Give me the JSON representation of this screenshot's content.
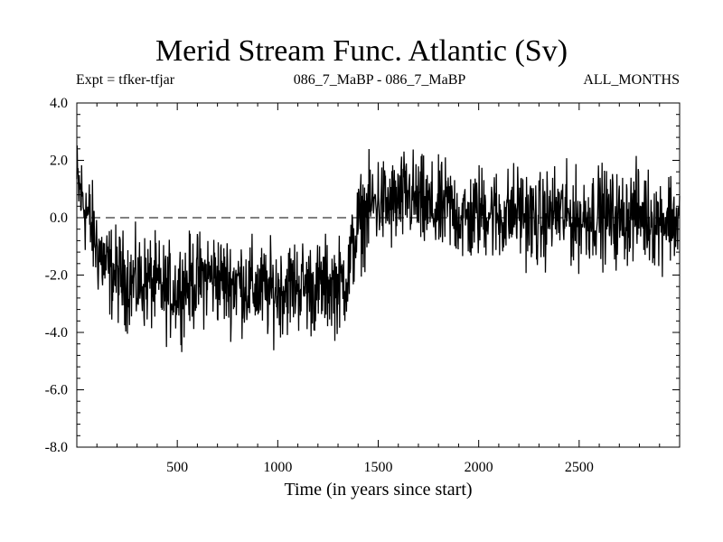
{
  "chart_data": {
    "type": "line",
    "title": "Merid Stream Func. Atlantic (Sv)",
    "subtitle_left": "Expt = tfker-tfjar",
    "subtitle_center": "086_7_MaBP - 086_7_MaBP",
    "subtitle_right": "ALL_MONTHS",
    "xlabel": "Time (in years since start)",
    "ylabel": "",
    "xlim": [
      0,
      3000
    ],
    "ylim": [
      -8.0,
      4.0
    ],
    "x_ticks": [
      500,
      1000,
      1500,
      2000,
      2500
    ],
    "x_tick_labels": [
      "500",
      "1000",
      "1500",
      "2000",
      "2500"
    ],
    "y_ticks": [
      4.0,
      2.0,
      0.0,
      -2.0,
      -4.0,
      -6.0,
      -8.0
    ],
    "y_tick_labels": [
      "4.0",
      "2.0",
      "0.0",
      "-2.0",
      "-4.0",
      "-6.0",
      "-8.0"
    ],
    "reference_line": {
      "y": 0.0,
      "style": "dashed"
    },
    "grid": false,
    "series": [
      {
        "color": "#000000",
        "x": [
          0,
          50,
          100,
          150,
          200,
          250,
          300,
          350,
          400,
          450,
          500,
          550,
          600,
          650,
          700,
          750,
          800,
          850,
          900,
          950,
          1000,
          1050,
          1100,
          1150,
          1200,
          1250,
          1300,
          1350,
          1375,
          1400,
          1450,
          1500,
          1550,
          1600,
          1650,
          1700,
          1750,
          1800,
          1850,
          1900,
          1950,
          2000,
          2050,
          2100,
          2150,
          2200,
          2250,
          2300,
          2350,
          2400,
          2450,
          2500,
          2550,
          2600,
          2650,
          2700,
          2750,
          2800,
          2850,
          2900,
          2950,
          3000
        ],
        "values": [
          1.2,
          0.2,
          -1.0,
          -1.8,
          -2.0,
          -2.2,
          -2.3,
          -2.2,
          -2.4,
          -2.6,
          -2.5,
          -2.3,
          -2.2,
          -2.0,
          -2.1,
          -2.3,
          -2.2,
          -2.4,
          -2.5,
          -2.6,
          -2.5,
          -2.4,
          -2.3,
          -2.4,
          -2.5,
          -2.3,
          -2.4,
          -2.0,
          -1.0,
          -0.3,
          0.3,
          0.6,
          0.4,
          0.5,
          0.8,
          0.5,
          0.3,
          0.2,
          0.4,
          0.1,
          -0.1,
          0.2,
          0.3,
          0.0,
          0.1,
          0.3,
          0.0,
          -0.2,
          0.1,
          0.2,
          0.0,
          -0.1,
          0.1,
          0.2,
          0.0,
          -0.1,
          0.1,
          0.2,
          0.0,
          -0.1,
          0.1,
          -0.3
        ]
      }
    ]
  }
}
